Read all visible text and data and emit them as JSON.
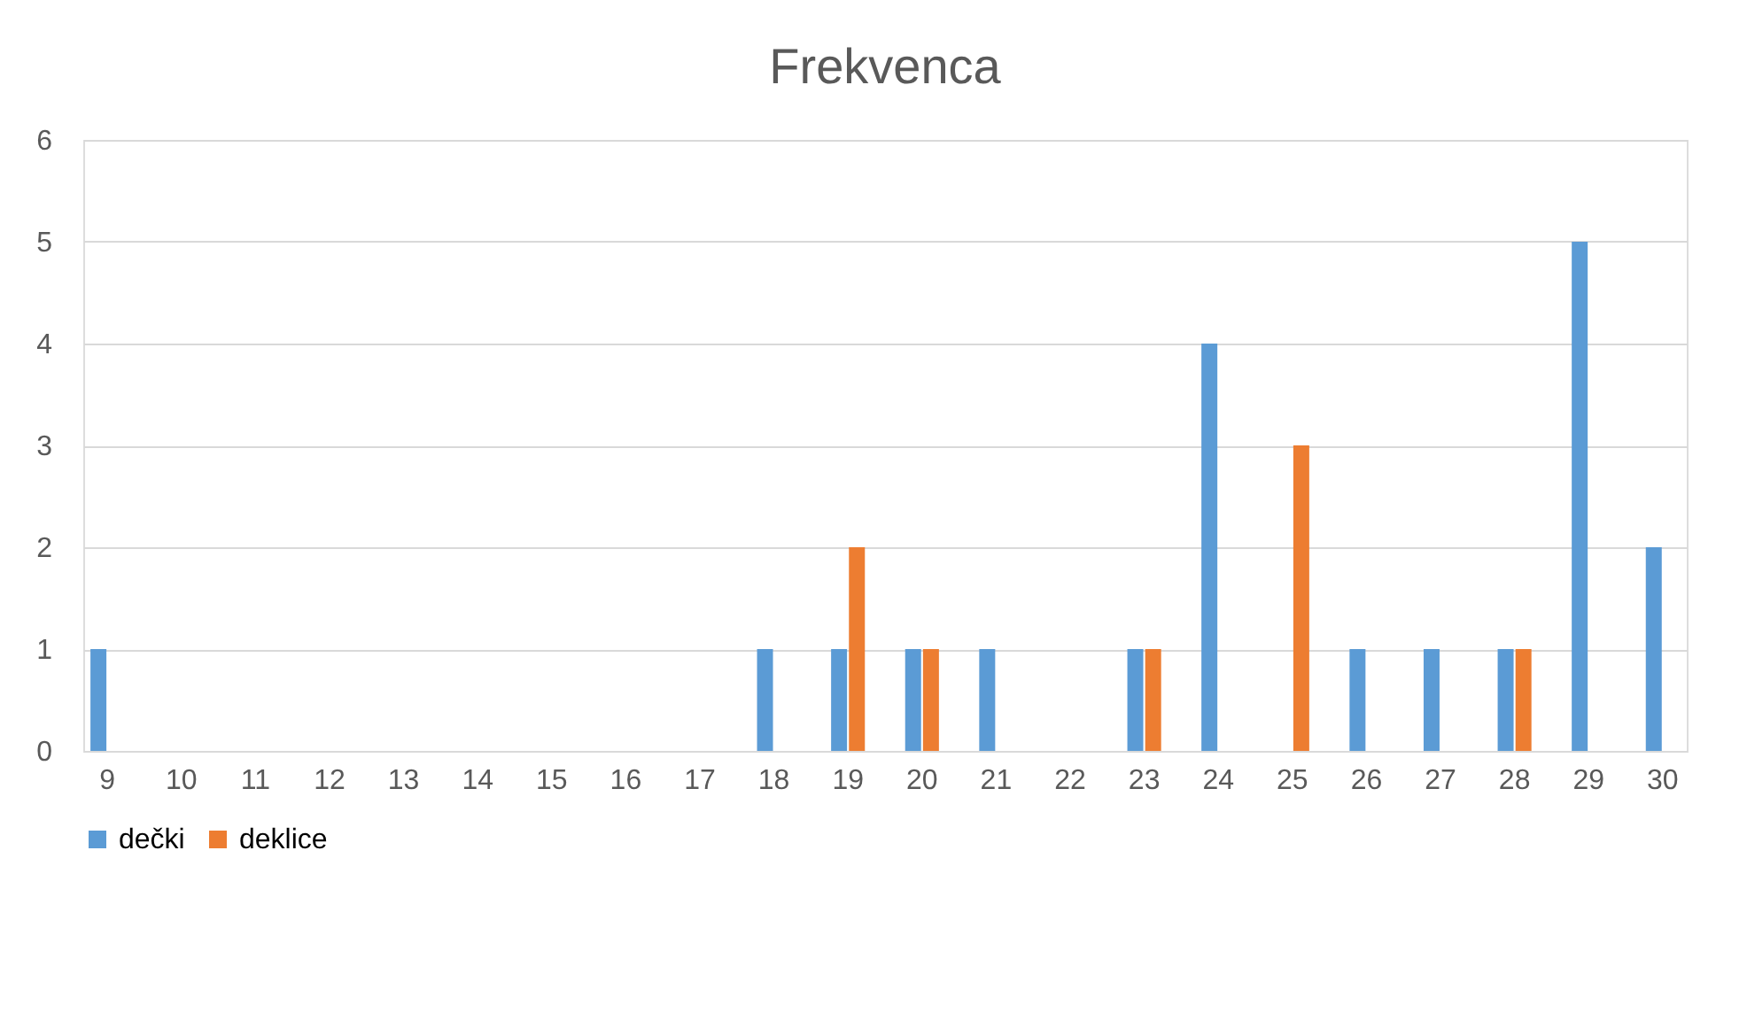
{
  "chart_data": {
    "type": "bar",
    "title": "Frekvenca",
    "categories": [
      "9",
      "10",
      "11",
      "12",
      "13",
      "14",
      "15",
      "16",
      "17",
      "18",
      "19",
      "20",
      "21",
      "22",
      "23",
      "24",
      "25",
      "26",
      "27",
      "28",
      "29",
      "30"
    ],
    "series": [
      {
        "name": "dečki",
        "color": "#5b9bd5",
        "values": [
          1,
          0,
          0,
          0,
          0,
          0,
          0,
          0,
          0,
          1,
          1,
          1,
          1,
          0,
          1,
          4,
          0,
          1,
          1,
          1,
          5,
          2
        ]
      },
      {
        "name": "deklice",
        "color": "#ed7d31",
        "values": [
          0,
          0,
          0,
          0,
          0,
          0,
          0,
          0,
          0,
          0,
          2,
          1,
          0,
          0,
          1,
          0,
          3,
          0,
          0,
          1,
          0,
          0
        ]
      }
    ],
    "ylim": [
      0,
      6
    ],
    "yticks": [
      0,
      1,
      2,
      3,
      4,
      5,
      6
    ],
    "grid": "y",
    "legend": "bottom"
  }
}
